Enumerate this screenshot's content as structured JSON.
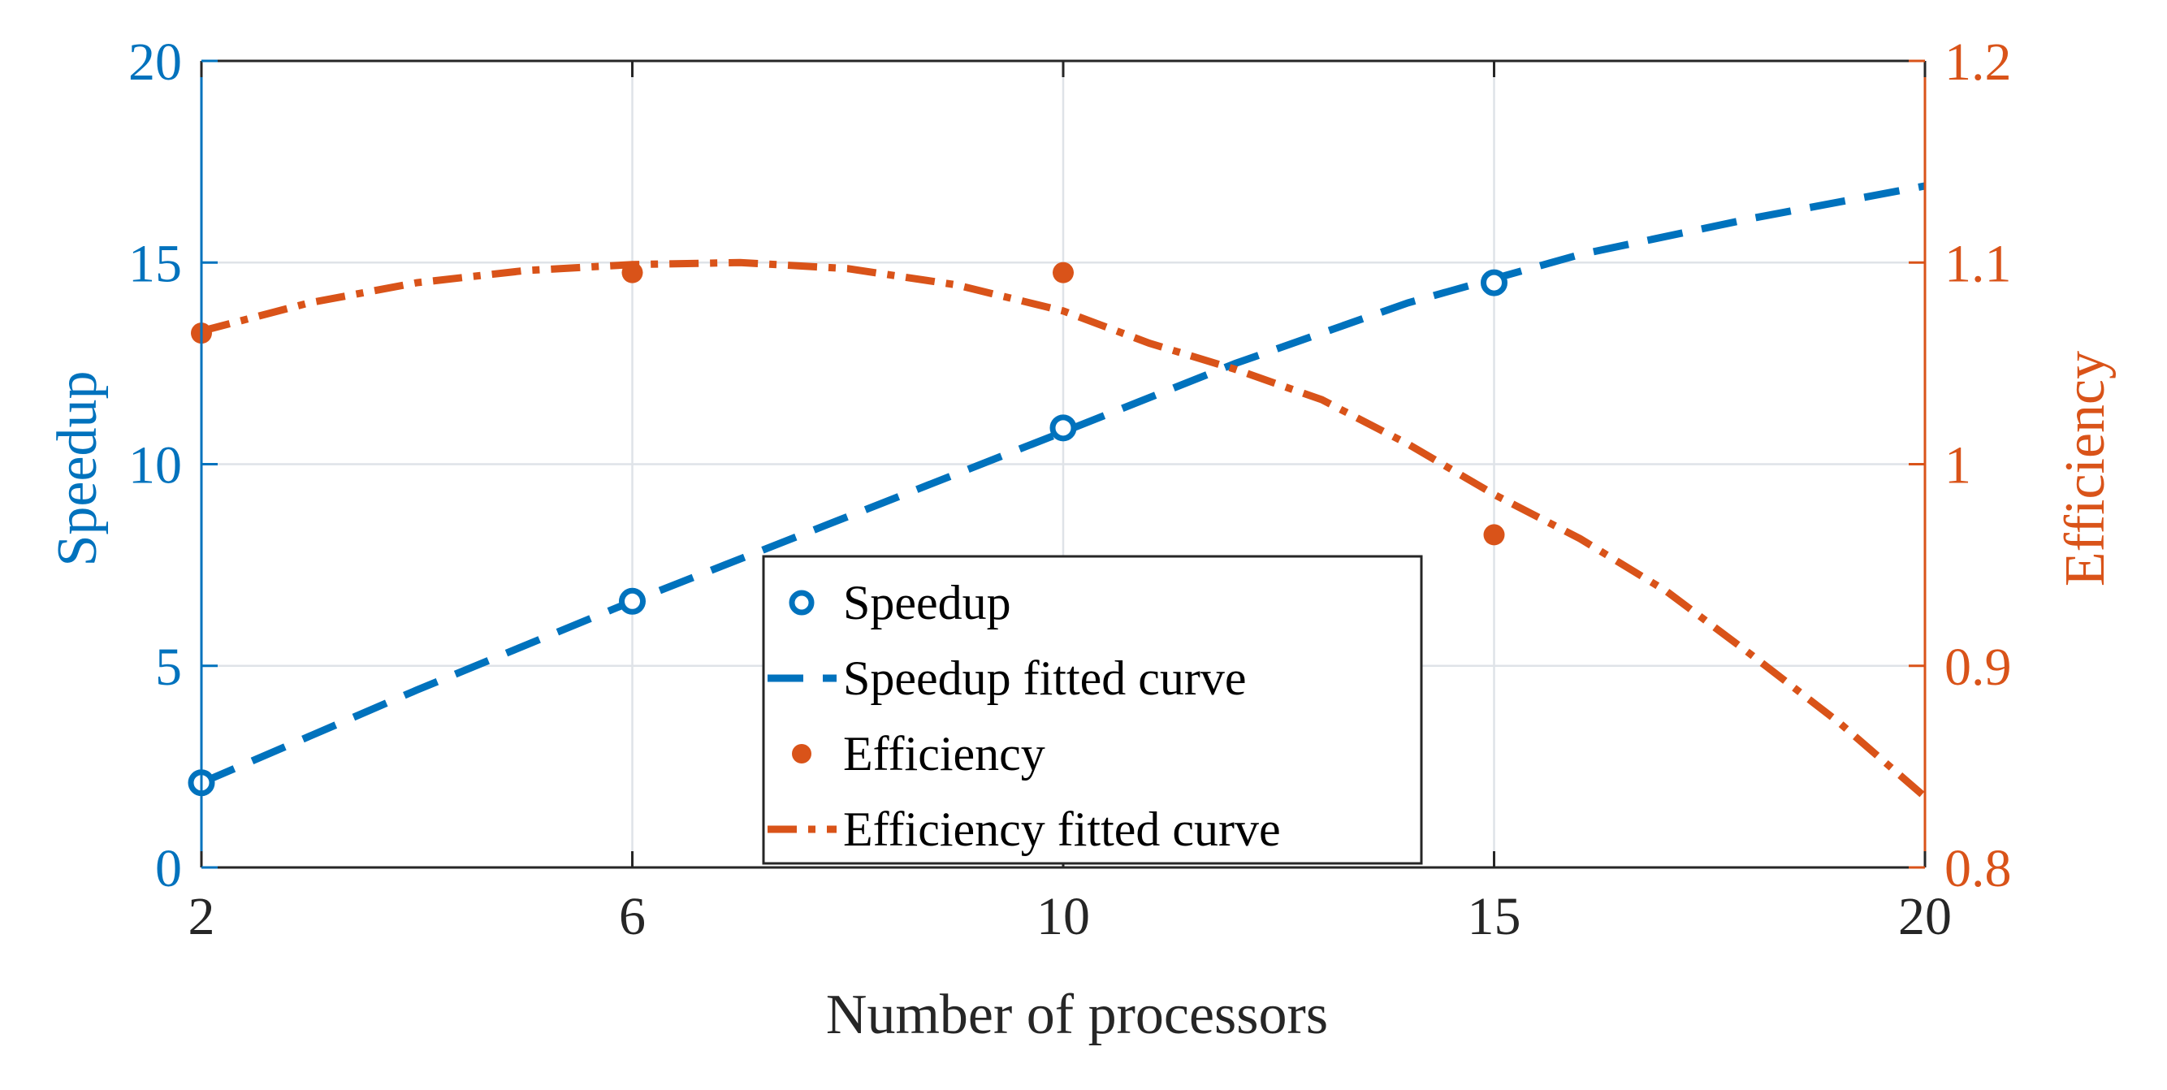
{
  "chart_data": {
    "type": "line",
    "x": [
      2,
      6,
      10,
      15,
      20
    ],
    "x_tick_labels": [
      "2",
      "6",
      "10",
      "15",
      "20"
    ],
    "xlabel": "Number of processors",
    "grid": true,
    "legend_position": "bottom-center",
    "left_axis": {
      "label": "Speedup",
      "ylim": [
        0,
        20
      ],
      "ticks": [
        0,
        5,
        10,
        15,
        20
      ],
      "tick_labels": [
        "0",
        "5",
        "10",
        "15",
        "20"
      ],
      "color": "#0072BD"
    },
    "right_axis": {
      "label": "Efficiency",
      "ylim": [
        0.8,
        1.2
      ],
      "ticks": [
        0.8,
        0.9,
        1.0,
        1.1,
        1.2
      ],
      "tick_labels": [
        "0.8",
        "0.9",
        "1",
        "1.1",
        "1.2"
      ],
      "color": "#D95319"
    },
    "series": [
      {
        "name": "Speedup",
        "kind": "markers-open-circle",
        "axis": "left",
        "color": "#0072BD",
        "x": [
          2,
          6,
          10,
          15
        ],
        "values": [
          2.1,
          6.6,
          10.9,
          14.5
        ]
      },
      {
        "name": "Speedup fitted curve",
        "kind": "dashed-line",
        "axis": "left",
        "color": "#0072BD",
        "x": [
          2,
          4,
          6,
          8,
          10,
          12,
          14,
          16,
          18,
          20
        ],
        "values": [
          2.1,
          4.4,
          6.6,
          8.7,
          10.8,
          12.5,
          14.0,
          15.2,
          16.1,
          16.9
        ]
      },
      {
        "name": "Efficiency",
        "kind": "markers-filled",
        "axis": "right",
        "color": "#D95319",
        "x": [
          2,
          6,
          10,
          15
        ],
        "values": [
          1.065,
          1.095,
          1.095,
          0.965
        ]
      },
      {
        "name": "Efficiency fitted curve",
        "kind": "dashdot-line",
        "axis": "right",
        "color": "#D95319",
        "x": [
          2,
          3,
          4,
          5,
          6,
          7,
          8,
          9,
          10,
          11,
          12,
          13,
          14,
          15,
          16,
          17,
          18,
          19,
          20
        ],
        "values": [
          1.066,
          1.08,
          1.09,
          1.096,
          1.099,
          1.1,
          1.097,
          1.089,
          1.076,
          1.06,
          1.047,
          1.032,
          1.01,
          0.985,
          0.963,
          0.937,
          0.905,
          0.872,
          0.835
        ]
      }
    ]
  }
}
